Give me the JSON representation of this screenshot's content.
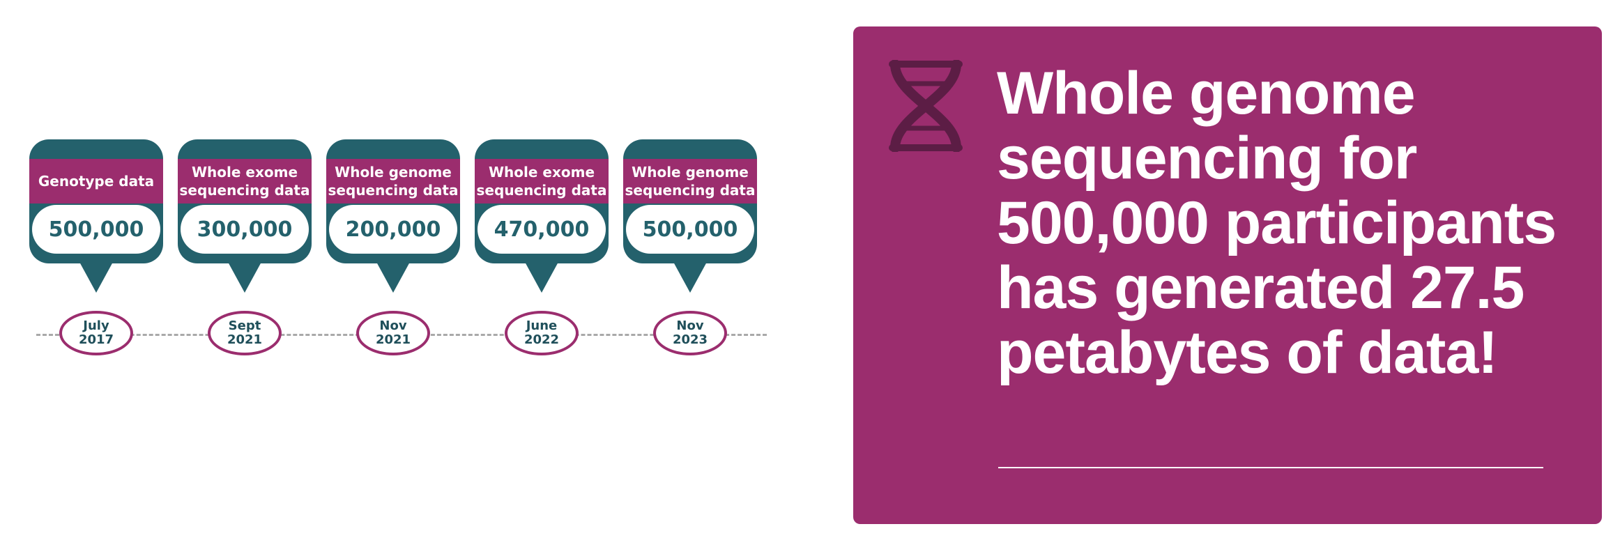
{
  "timeline": {
    "milestones": [
      {
        "label": "Genotype data",
        "value": "500,000",
        "date": "July\n2017"
      },
      {
        "label": "Whole exome\nsequencing data",
        "value": "300,000",
        "date": "Sept\n2021"
      },
      {
        "label": "Whole genome\nsequencing data",
        "value": "200,000",
        "date": "Nov\n2021"
      },
      {
        "label": "Whole exome\nsequencing data",
        "value": "470,000",
        "date": "June\n2022"
      },
      {
        "label": "Whole genome\nsequencing data",
        "value": "500,000",
        "date": "Nov\n2023"
      }
    ]
  },
  "callout": {
    "icon": "dna-icon",
    "text": "Whole genome sequencing for 500,000 participants has generated 27.5 petabytes of data!"
  },
  "colors": {
    "teal": "#24616c",
    "magenta": "#9b2d6e",
    "icon": "#5c1d45"
  }
}
